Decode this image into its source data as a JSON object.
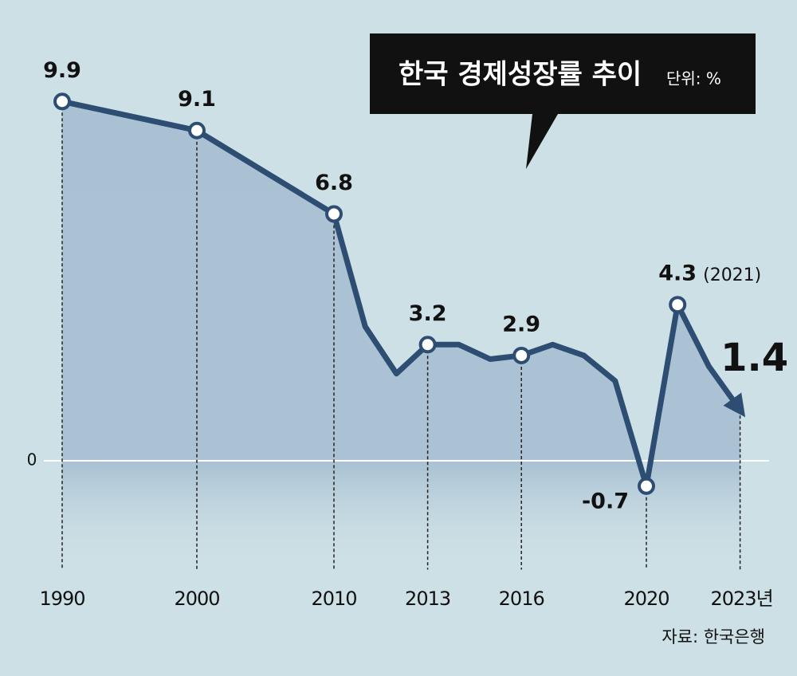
{
  "chart_data": {
    "type": "line",
    "title": "한국 경제성장률 추이",
    "subtitle": "단위: %",
    "source": "자료: 한국은행",
    "annotation": "(2021)",
    "categories": [
      "1990",
      "2000",
      "2010",
      null,
      null,
      "2013",
      null,
      null,
      "2016",
      null,
      null,
      null,
      "2020",
      null,
      null,
      "2023년"
    ],
    "values": [
      9.9,
      9.1,
      6.8,
      3.7,
      2.4,
      3.2,
      3.2,
      2.8,
      2.9,
      3.2,
      2.9,
      2.2,
      -0.7,
      4.3,
      2.6,
      1.4
    ],
    "value_labels": [
      "9.9",
      "9.1",
      "6.8",
      null,
      null,
      "3.2",
      null,
      null,
      "2.9",
      null,
      null,
      null,
      "-0.7",
      "4.3",
      null,
      "1.4"
    ],
    "color": "#2e4d72",
    "fill": "#a9c1d3",
    "ylim": [
      -3,
      10.5
    ],
    "yticks": [
      0
    ]
  }
}
